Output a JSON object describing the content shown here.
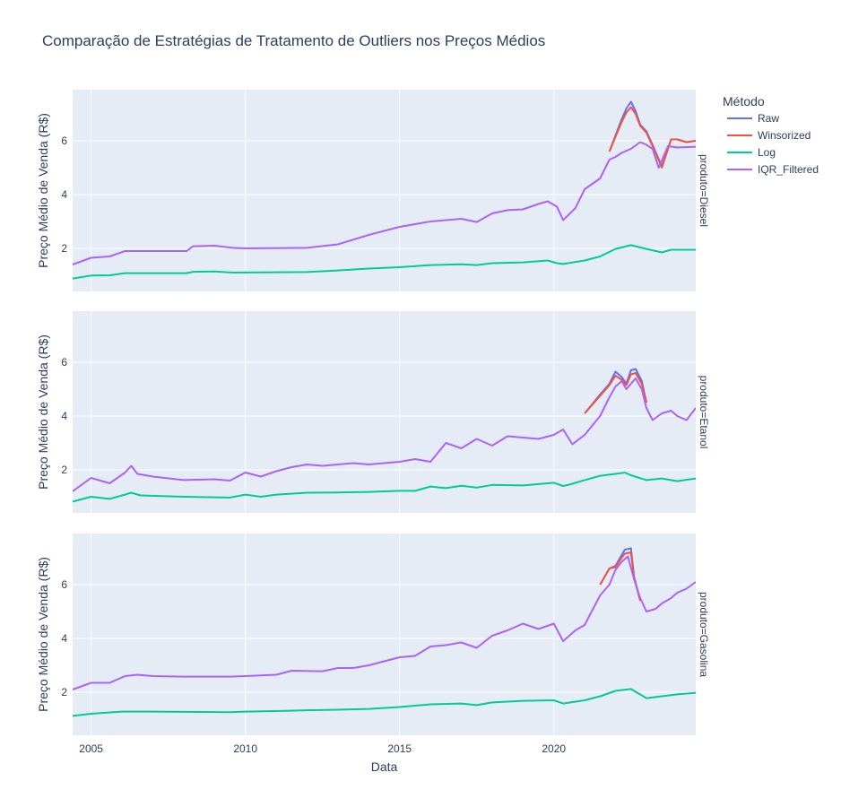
{
  "chart_data": {
    "type": "line",
    "title": "Comparação de Estratégias de Tratamento de Outliers nos Preços Médios",
    "xlabel": "Data",
    "ylabel": "Preço Médio de Venda (R$)",
    "xlim": [
      2004.4,
      2024.6
    ],
    "ylim": [
      0.4,
      7.9
    ],
    "x_ticks": [
      "2005",
      "2010",
      "2015",
      "2020"
    ],
    "y_ticks": [
      "2",
      "4",
      "6"
    ],
    "grid": true,
    "legend": {
      "title": "Método",
      "placement": "right",
      "entries": [
        "Raw",
        "Winsorized",
        "Log",
        "IQR_Filtered"
      ]
    },
    "series_colors": {
      "Raw": "#636efa",
      "Winsorized": "#EF553B",
      "Log": "#00cc96",
      "IQR_Filtered": "#ab63fa"
    },
    "panels": [
      {
        "facet_label": "produto=Diesel",
        "series": [
          {
            "name": "Raw",
            "x": [
              2021.8,
              2022.0,
              2022.2,
              2022.35,
              2022.5,
              2022.65,
              2022.8,
              2023.0,
              2023.2,
              2023.5,
              2023.8,
              2024.0,
              2024.3,
              2024.6
            ],
            "y": [
              5.6,
              6.2,
              6.8,
              7.2,
              7.45,
              7.1,
              6.6,
              6.35,
              5.85,
              5.05,
              6.05,
              6.05,
              5.95,
              6.0
            ]
          },
          {
            "name": "Winsorized",
            "x": [
              2021.8,
              2022.0,
              2022.2,
              2022.35,
              2022.5,
              2022.65,
              2022.8,
              2023.0,
              2023.2,
              2023.5,
              2023.8,
              2024.0,
              2024.3,
              2024.6
            ],
            "y": [
              5.6,
              6.15,
              6.7,
              7.05,
              7.25,
              7.0,
              6.55,
              6.3,
              5.8,
              5.0,
              6.05,
              6.05,
              5.95,
              6.0
            ]
          },
          {
            "name": "Log",
            "x": [
              2004.4,
              2005.0,
              2005.6,
              2006.1,
              2008.1,
              2008.3,
              2009.0,
              2009.6,
              2012.0,
              2013.0,
              2014.0,
              2015.0,
              2016.0,
              2017.0,
              2017.5,
              2018.0,
              2019.0,
              2019.8,
              2020.1,
              2020.3,
              2021.0,
              2021.5,
              2022.0,
              2022.5,
              2023.0,
              2023.5,
              2023.8,
              2024.0,
              2024.6
            ],
            "y": [
              0.88,
              0.99,
              1.0,
              1.08,
              1.08,
              1.13,
              1.14,
              1.1,
              1.12,
              1.18,
              1.25,
              1.3,
              1.38,
              1.41,
              1.38,
              1.45,
              1.48,
              1.55,
              1.45,
              1.42,
              1.55,
              1.7,
              1.98,
              2.12,
              1.98,
              1.85,
              1.95,
              1.95,
              1.95
            ]
          },
          {
            "name": "IQR_Filtered",
            "x": [
              2004.4,
              2005.0,
              2005.6,
              2006.1,
              2008.1,
              2008.3,
              2009.0,
              2009.6,
              2010.0,
              2012.0,
              2013.0,
              2014.0,
              2015.0,
              2016.0,
              2017.0,
              2017.5,
              2018.0,
              2018.5,
              2019.0,
              2019.5,
              2019.8,
              2020.1,
              2020.3,
              2020.7,
              2021.0,
              2021.5,
              2021.8,
              2022.0,
              2022.2,
              2022.5,
              2022.8,
              2023.0,
              2023.2,
              2023.4,
              2023.7,
              2024.0,
              2024.6
            ],
            "y": [
              1.4,
              1.65,
              1.7,
              1.9,
              1.9,
              2.08,
              2.1,
              2.02,
              2.0,
              2.02,
              2.15,
              2.5,
              2.8,
              3.0,
              3.1,
              2.98,
              3.3,
              3.42,
              3.45,
              3.65,
              3.75,
              3.55,
              3.05,
              3.5,
              4.2,
              4.6,
              5.3,
              5.4,
              5.55,
              5.7,
              5.95,
              5.85,
              5.7,
              5.0,
              5.8,
              5.75,
              5.78
            ]
          }
        ]
      },
      {
        "facet_label": "produto=Etanol",
        "series": [
          {
            "name": "Raw",
            "x": [
              2021.0,
              2021.5,
              2021.8,
              2022.0,
              2022.2,
              2022.35,
              2022.5,
              2022.65,
              2022.85,
              2023.0
            ],
            "y": [
              4.1,
              4.8,
              5.2,
              5.65,
              5.45,
              5.2,
              5.7,
              5.75,
              5.3,
              4.5
            ]
          },
          {
            "name": "Winsorized",
            "x": [
              2021.0,
              2021.5,
              2021.8,
              2022.0,
              2022.2,
              2022.35,
              2022.5,
              2022.65,
              2022.85,
              2023.0
            ],
            "y": [
              4.1,
              4.75,
              5.15,
              5.5,
              5.35,
              5.15,
              5.55,
              5.6,
              5.2,
              4.5
            ]
          },
          {
            "name": "Log",
            "x": [
              2004.4,
              2005.0,
              2005.6,
              2006.1,
              2006.3,
              2006.6,
              2008.0,
              2009.5,
              2010.0,
              2010.5,
              2011.0,
              2012.0,
              2013.0,
              2014.0,
              2015.0,
              2015.5,
              2016.0,
              2016.5,
              2017.0,
              2017.5,
              2018.0,
              2019.0,
              2020.0,
              2020.3,
              2020.5,
              2021.0,
              2021.5,
              2022.0,
              2022.3,
              2022.5,
              2023.0,
              2023.5,
              2024.0,
              2024.6
            ],
            "y": [
              0.82,
              1.0,
              0.92,
              1.08,
              1.15,
              1.05,
              1.0,
              0.97,
              1.08,
              1.0,
              1.08,
              1.15,
              1.16,
              1.18,
              1.22,
              1.22,
              1.38,
              1.32,
              1.41,
              1.34,
              1.44,
              1.42,
              1.52,
              1.4,
              1.45,
              1.62,
              1.78,
              1.85,
              1.9,
              1.8,
              1.62,
              1.68,
              1.58,
              1.68
            ]
          },
          {
            "name": "IQR_Filtered",
            "x": [
              2004.4,
              2005.0,
              2005.6,
              2006.1,
              2006.3,
              2006.5,
              2007.0,
              2008.0,
              2009.0,
              2009.5,
              2010.0,
              2010.5,
              2011.0,
              2011.5,
              2012.0,
              2012.5,
              2013.0,
              2013.5,
              2014.0,
              2015.0,
              2015.5,
              2016.0,
              2016.5,
              2017.0,
              2017.5,
              2018.0,
              2018.5,
              2019.0,
              2019.5,
              2020.0,
              2020.3,
              2020.6,
              2021.0,
              2021.5,
              2021.8,
              2022.0,
              2022.2,
              2022.35,
              2022.5,
              2022.65,
              2022.85,
              2023.0,
              2023.2,
              2023.5,
              2023.8,
              2024.0,
              2024.3,
              2024.6
            ],
            "y": [
              1.2,
              1.7,
              1.5,
              1.9,
              2.15,
              1.85,
              1.75,
              1.62,
              1.65,
              1.6,
              1.9,
              1.75,
              1.95,
              2.1,
              2.2,
              2.15,
              2.2,
              2.25,
              2.2,
              2.3,
              2.4,
              2.3,
              3.0,
              2.8,
              3.15,
              2.9,
              3.25,
              3.2,
              3.15,
              3.3,
              3.5,
              2.95,
              3.3,
              4.0,
              4.7,
              5.1,
              5.3,
              5.0,
              5.2,
              5.4,
              5.0,
              4.3,
              3.85,
              4.1,
              4.2,
              4.0,
              3.85,
              4.3
            ]
          }
        ]
      },
      {
        "facet_label": "produto=Gasolina",
        "series": [
          {
            "name": "Raw",
            "x": [
              2021.5,
              2021.8,
              2022.0,
              2022.2,
              2022.3,
              2022.5,
              2022.6,
              2022.8
            ],
            "y": [
              6.0,
              6.6,
              6.7,
              7.1,
              7.3,
              7.35,
              6.3,
              5.4
            ]
          },
          {
            "name": "Winsorized",
            "x": [
              2021.5,
              2021.8,
              2022.0,
              2022.2,
              2022.3,
              2022.5,
              2022.6,
              2022.8
            ],
            "y": [
              6.0,
              6.6,
              6.65,
              7.0,
              7.15,
              7.2,
              6.25,
              5.4
            ]
          },
          {
            "name": "Log",
            "x": [
              2004.4,
              2005.0,
              2006.0,
              2007.0,
              2008.0,
              2009.5,
              2010.0,
              2011.0,
              2012.0,
              2013.0,
              2014.0,
              2015.0,
              2016.0,
              2017.0,
              2017.5,
              2018.0,
              2019.0,
              2020.0,
              2020.3,
              2021.0,
              2021.5,
              2022.0,
              2022.5,
              2023.0,
              2023.5,
              2024.0,
              2024.6
            ],
            "y": [
              1.12,
              1.2,
              1.28,
              1.28,
              1.27,
              1.26,
              1.28,
              1.3,
              1.33,
              1.35,
              1.38,
              1.45,
              1.55,
              1.58,
              1.52,
              1.62,
              1.68,
              1.7,
              1.58,
              1.7,
              1.85,
              2.05,
              2.12,
              1.78,
              1.85,
              1.92,
              1.98
            ]
          },
          {
            "name": "IQR_Filtered",
            "x": [
              2004.4,
              2005.0,
              2005.6,
              2006.1,
              2006.5,
              2007.0,
              2008.0,
              2009.5,
              2010.0,
              2011.0,
              2011.5,
              2012.5,
              2013.0,
              2013.5,
              2014.0,
              2015.0,
              2015.5,
              2016.0,
              2016.5,
              2017.0,
              2017.5,
              2018.0,
              2018.5,
              2019.0,
              2019.5,
              2020.0,
              2020.3,
              2020.7,
              2021.0,
              2021.5,
              2021.8,
              2022.0,
              2022.2,
              2022.4,
              2022.6,
              2022.8,
              2023.0,
              2023.3,
              2023.5,
              2023.8,
              2024.0,
              2024.3,
              2024.6
            ],
            "y": [
              2.1,
              2.35,
              2.35,
              2.6,
              2.65,
              2.6,
              2.58,
              2.58,
              2.6,
              2.65,
              2.8,
              2.78,
              2.9,
              2.9,
              3.0,
              3.3,
              3.35,
              3.7,
              3.75,
              3.85,
              3.65,
              4.1,
              4.3,
              4.55,
              4.35,
              4.55,
              3.9,
              4.3,
              4.5,
              5.6,
              6.0,
              6.55,
              6.85,
              7.05,
              6.2,
              5.5,
              5.0,
              5.1,
              5.3,
              5.5,
              5.7,
              5.85,
              6.1
            ]
          }
        ]
      }
    ]
  }
}
